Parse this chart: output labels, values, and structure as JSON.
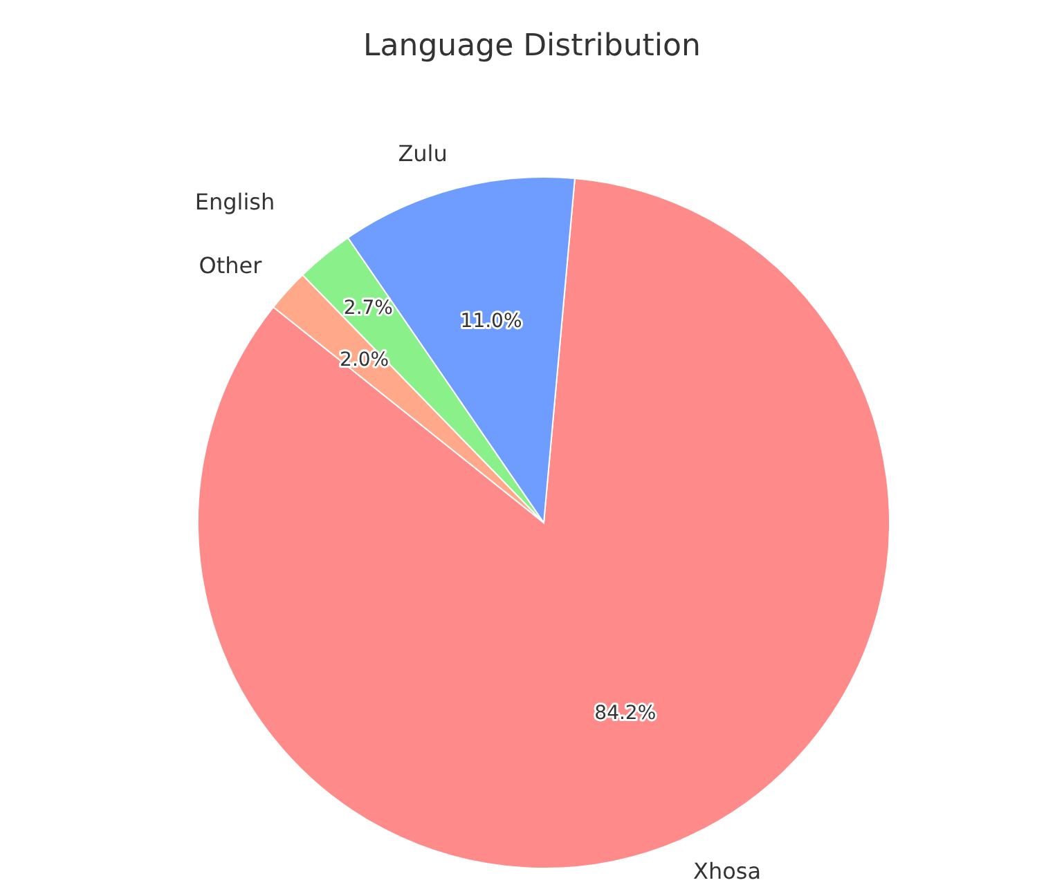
{
  "chart_data": {
    "type": "pie",
    "title": "Language Distribution",
    "categories": [
      "Xhosa",
      "Other",
      "English",
      "Zulu"
    ],
    "values": [
      84.2,
      2.0,
      2.7,
      11.0
    ],
    "colors": [
      "#ff8a8a",
      "#ffa98a",
      "#8af08a",
      "#6f9cff"
    ],
    "value_labels": [
      "84.2%",
      "2.0%",
      "2.7%",
      "11.0%"
    ]
  }
}
